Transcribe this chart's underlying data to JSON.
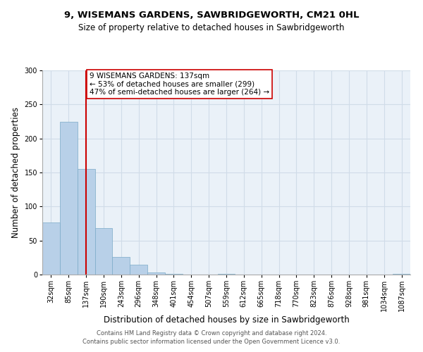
{
  "title1": "9, WISEMANS GARDENS, SAWBRIDGEWORTH, CM21 0HL",
  "title2": "Size of property relative to detached houses in Sawbridgeworth",
  "xlabel": "Distribution of detached houses by size in Sawbridgeworth",
  "ylabel": "Number of detached properties",
  "bin_labels": [
    "32sqm",
    "85sqm",
    "137sqm",
    "190sqm",
    "243sqm",
    "296sqm",
    "348sqm",
    "401sqm",
    "454sqm",
    "507sqm",
    "559sqm",
    "612sqm",
    "665sqm",
    "718sqm",
    "770sqm",
    "823sqm",
    "876sqm",
    "928sqm",
    "981sqm",
    "1034sqm",
    "1087sqm"
  ],
  "bar_heights": [
    77,
    224,
    155,
    68,
    26,
    14,
    3,
    1,
    0,
    0,
    1,
    0,
    0,
    0,
    0,
    0,
    0,
    0,
    0,
    0,
    1
  ],
  "bar_color": "#b8d0e8",
  "bar_edge_color": "#7aaac8",
  "vline_x_index": 2,
  "vline_color": "#cc0000",
  "annotation_text": "9 WISEMANS GARDENS: 137sqm\n← 53% of detached houses are smaller (299)\n47% of semi-detached houses are larger (264) →",
  "annotation_box_color": "#ffffff",
  "annotation_border_color": "#cc0000",
  "ylim": [
    0,
    300
  ],
  "yticks": [
    0,
    50,
    100,
    150,
    200,
    250,
    300
  ],
  "footnote": "Contains HM Land Registry data © Crown copyright and database right 2024.\nContains public sector information licensed under the Open Government Licence v3.0.",
  "bg_color": "#ffffff",
  "grid_color": "#d0dce8",
  "title_fontsize": 9.5,
  "subtitle_fontsize": 8.5,
  "axis_label_fontsize": 8.5,
  "tick_fontsize": 7,
  "annotation_fontsize": 7.5,
  "footnote_fontsize": 6
}
